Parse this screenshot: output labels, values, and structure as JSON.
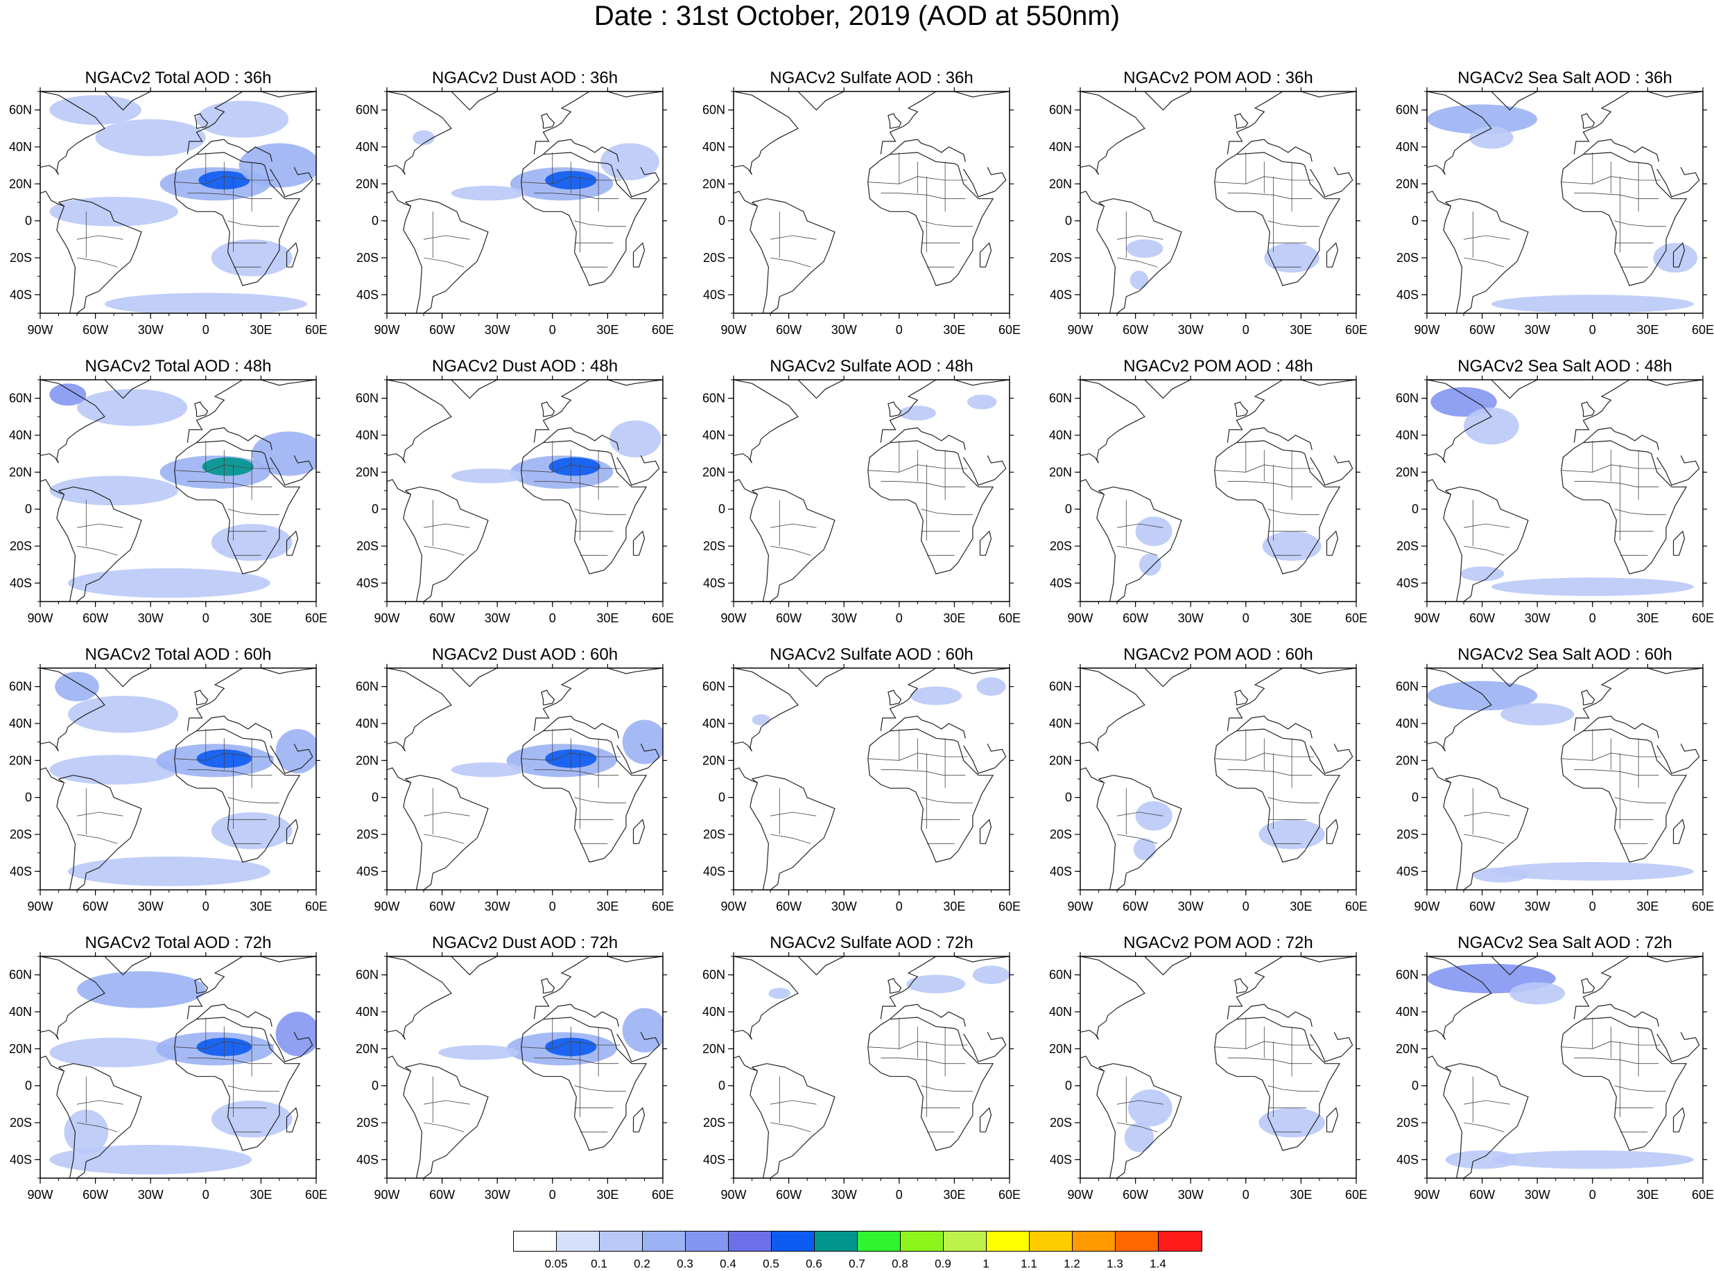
{
  "title": "Date : 31st October, 2019 (AOD at 550nm)",
  "rows": [
    "36h",
    "48h",
    "60h",
    "72h"
  ],
  "columns": [
    {
      "id": "total",
      "titles": [
        "NGACv2 Total AOD : 36h",
        "NGACv2 Total AOD : 48h",
        "NGACv2 Total AOD : 60h",
        "NGACv2 Total AOD : 72h"
      ]
    },
    {
      "id": "dust",
      "titles": [
        "NGACv2 Dust AOD : 36h",
        "NGACv2 Dust AOD : 48h",
        "NGACv2 Dust AOD : 60h",
        "NGACv2 Dust AOD : 72h"
      ]
    },
    {
      "id": "sulfate",
      "titles": [
        "NGACv2 Sulfate AOD : 36h",
        "NGACv2 Sulfate AOD : 48h",
        "NGACv2 Sulfate AOD : 60h",
        "NGACv2 Sulfate AOD : 72h"
      ]
    },
    {
      "id": "pom",
      "titles": [
        "NGACv2 POM AOD : 36h",
        "NGACv2 POM AOD : 48h",
        "NGACv2 POM AOD : 60h",
        "NGACv2 POM AOD : 72h"
      ]
    },
    {
      "id": "seasalt",
      "titles": [
        "NGACv2 Sea Salt AOD : 36h",
        "NGACv2 Sea Salt AOD : 48h",
        "NGACv2 Sea Salt AOD : 60h",
        "NGACv2 Sea Salt  AOD : 72h"
      ]
    }
  ],
  "map_extent": {
    "lon": [
      -90,
      60
    ],
    "lat": [
      -50,
      70
    ]
  },
  "lon_ticks": [
    {
      "value": -90,
      "label": "90W"
    },
    {
      "value": -60,
      "label": "60W"
    },
    {
      "value": -30,
      "label": "30W"
    },
    {
      "value": 0,
      "label": "0"
    },
    {
      "value": 30,
      "label": "30E"
    },
    {
      "value": 60,
      "label": "60E"
    }
  ],
  "lat_ticks": [
    {
      "value": 60,
      "label": "60N"
    },
    {
      "value": 40,
      "label": "40N"
    },
    {
      "value": 20,
      "label": "20N"
    },
    {
      "value": 0,
      "label": "0"
    },
    {
      "value": -20,
      "label": "20S"
    },
    {
      "value": -40,
      "label": "40S"
    }
  ],
  "colorbar": {
    "labels": [
      "0.05",
      "0.1",
      "0.2",
      "0.3",
      "0.4",
      "0.5",
      "0.6",
      "0.7",
      "0.8",
      "0.9",
      "1",
      "1.1",
      "1.2",
      "1.3",
      "1.4"
    ],
    "colors": [
      "#ffffff",
      "#d5e0fb",
      "#b9c9f7",
      "#9bb3f4",
      "#8496f2",
      "#6b70ea",
      "#0d5cf2",
      "#00968c",
      "#2ff42f",
      "#8ef51c",
      "#bdf24a",
      "#ffff00",
      "#ffcc00",
      "#ff9900",
      "#ff6600",
      "#ff1a1a"
    ]
  },
  "plumes": {
    "total": [
      [
        [
          -50,
          5,
          35,
          8,
          0.15
        ],
        [
          5,
          20,
          30,
          9,
          0.25
        ],
        [
          10,
          22,
          14,
          5,
          0.55
        ],
        [
          40,
          30,
          22,
          12,
          0.2
        ],
        [
          -30,
          45,
          30,
          10,
          0.12
        ],
        [
          25,
          -20,
          22,
          10,
          0.18
        ],
        [
          0,
          -45,
          55,
          6,
          0.12
        ],
        [
          -60,
          60,
          25,
          8,
          0.12
        ],
        [
          20,
          55,
          25,
          10,
          0.12
        ]
      ],
      [
        [
          -50,
          10,
          35,
          8,
          0.15
        ],
        [
          5,
          20,
          30,
          9,
          0.25
        ],
        [
          12,
          23,
          14,
          5,
          0.6
        ],
        [
          45,
          30,
          20,
          12,
          0.2
        ],
        [
          -40,
          55,
          30,
          10,
          0.15
        ],
        [
          25,
          -18,
          22,
          10,
          0.18
        ],
        [
          -20,
          -40,
          55,
          8,
          0.12
        ],
        [
          -75,
          62,
          10,
          6,
          0.3
        ]
      ],
      [
        [
          -50,
          15,
          35,
          8,
          0.15
        ],
        [
          5,
          20,
          32,
          9,
          0.25
        ],
        [
          10,
          21,
          15,
          5,
          0.55
        ],
        [
          50,
          25,
          12,
          12,
          0.25
        ],
        [
          -45,
          45,
          30,
          10,
          0.15
        ],
        [
          25,
          -18,
          22,
          10,
          0.18
        ],
        [
          -20,
          -40,
          55,
          8,
          0.12
        ],
        [
          -70,
          60,
          12,
          8,
          0.2
        ]
      ],
      [
        [
          -50,
          18,
          35,
          8,
          0.15
        ],
        [
          5,
          20,
          32,
          9,
          0.25
        ],
        [
          10,
          21,
          15,
          5,
          0.55
        ],
        [
          50,
          28,
          12,
          12,
          0.3
        ],
        [
          -35,
          52,
          35,
          10,
          0.2
        ],
        [
          25,
          -18,
          22,
          10,
          0.18
        ],
        [
          -30,
          -40,
          55,
          8,
          0.15
        ],
        [
          -65,
          -25,
          12,
          12,
          0.15
        ]
      ]
    ],
    "dust": [
      [
        [
          5,
          20,
          28,
          9,
          0.25
        ],
        [
          10,
          22,
          14,
          5,
          0.55
        ],
        [
          -35,
          15,
          20,
          4,
          0.12
        ],
        [
          42,
          32,
          16,
          10,
          0.15
        ],
        [
          -70,
          45,
          6,
          4,
          0.1
        ]
      ],
      [
        [
          5,
          20,
          28,
          9,
          0.25
        ],
        [
          12,
          23,
          14,
          5,
          0.55
        ],
        [
          -35,
          18,
          20,
          4,
          0.12
        ],
        [
          45,
          38,
          14,
          10,
          0.15
        ]
      ],
      [
        [
          5,
          20,
          30,
          9,
          0.25
        ],
        [
          10,
          21,
          14,
          5,
          0.5
        ],
        [
          -35,
          15,
          20,
          4,
          0.12
        ],
        [
          50,
          30,
          12,
          12,
          0.2
        ]
      ],
      [
        [
          5,
          20,
          30,
          9,
          0.25
        ],
        [
          10,
          21,
          14,
          5,
          0.5
        ],
        [
          -40,
          18,
          22,
          4,
          0.12
        ],
        [
          50,
          30,
          12,
          12,
          0.2
        ]
      ]
    ],
    "sulfate": [
      [],
      [
        [
          10,
          52,
          10,
          4,
          0.1
        ],
        [
          45,
          58,
          8,
          4,
          0.1
        ]
      ],
      [
        [
          20,
          55,
          14,
          5,
          0.1
        ],
        [
          50,
          60,
          8,
          5,
          0.1
        ],
        [
          -75,
          42,
          5,
          3,
          0.1
        ]
      ],
      [
        [
          20,
          55,
          16,
          5,
          0.12
        ],
        [
          50,
          60,
          10,
          5,
          0.12
        ],
        [
          -65,
          50,
          6,
          3,
          0.1
        ]
      ]
    ],
    "pom": [
      [
        [
          25,
          -20,
          15,
          8,
          0.15
        ],
        [
          -55,
          -15,
          10,
          5,
          0.12
        ],
        [
          -58,
          -32,
          5,
          5,
          0.12
        ]
      ],
      [
        [
          25,
          -20,
          16,
          8,
          0.15
        ],
        [
          -50,
          -12,
          10,
          8,
          0.12
        ],
        [
          -52,
          -30,
          6,
          6,
          0.12
        ]
      ],
      [
        [
          25,
          -20,
          18,
          8,
          0.15
        ],
        [
          -50,
          -10,
          10,
          8,
          0.12
        ],
        [
          -55,
          -28,
          6,
          6,
          0.12
        ]
      ],
      [
        [
          25,
          -20,
          18,
          8,
          0.15
        ],
        [
          -52,
          -12,
          12,
          10,
          0.12
        ],
        [
          -58,
          -28,
          8,
          8,
          0.12
        ]
      ]
    ],
    "seasalt": [
      [
        [
          -60,
          55,
          30,
          8,
          0.2
        ],
        [
          -55,
          45,
          12,
          6,
          0.15
        ],
        [
          0,
          -45,
          55,
          5,
          0.15
        ],
        [
          45,
          -20,
          12,
          8,
          0.12
        ]
      ],
      [
        [
          -70,
          58,
          18,
          8,
          0.3
        ],
        [
          -55,
          45,
          15,
          10,
          0.15
        ],
        [
          0,
          -42,
          55,
          5,
          0.15
        ],
        [
          -60,
          -35,
          12,
          4,
          0.12
        ]
      ],
      [
        [
          -60,
          55,
          30,
          8,
          0.25
        ],
        [
          -30,
          45,
          20,
          6,
          0.15
        ],
        [
          0,
          -40,
          55,
          5,
          0.15
        ],
        [
          -50,
          -42,
          15,
          4,
          0.12
        ]
      ],
      [
        [
          -55,
          58,
          35,
          8,
          0.3
        ],
        [
          -30,
          50,
          15,
          6,
          0.15
        ],
        [
          0,
          -40,
          55,
          5,
          0.15
        ],
        [
          -60,
          -40,
          20,
          5,
          0.15
        ]
      ]
    ]
  }
}
